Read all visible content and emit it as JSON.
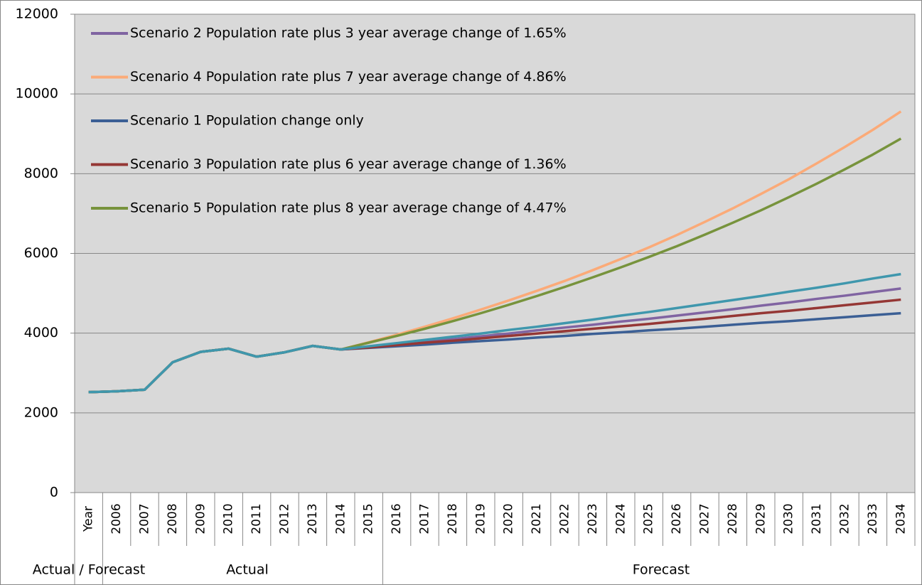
{
  "chart_data": {
    "type": "line",
    "categories": [
      "Year",
      "2006",
      "2007",
      "2008",
      "2009",
      "2010",
      "2011",
      "2012",
      "2013",
      "2014",
      "2015",
      "2016",
      "2017",
      "2018",
      "2019",
      "2020",
      "2021",
      "2022",
      "2023",
      "2024",
      "2025",
      "2026",
      "2027",
      "2028",
      "2029",
      "2030",
      "2031",
      "2032",
      "2033",
      "2034"
    ],
    "groups": [
      "Actual / Forecast",
      "Actual",
      "Forecast"
    ],
    "ylim": [
      0,
      12000
    ],
    "yticks": [
      0,
      2000,
      4000,
      6000,
      8000,
      10000,
      12000
    ],
    "grid": true,
    "legend": "upper left",
    "series": [
      {
        "name": "Scenario 2 Population rate plus 3 year average change of 1.65%",
        "color": "#8064a2",
        "values": [
          2520,
          2540,
          2580,
          3270,
          3530,
          3610,
          3410,
          3520,
          3680,
          3590,
          3650,
          3720,
          3790,
          3850,
          3920,
          3990,
          4070,
          4140,
          4210,
          4290,
          4360,
          4440,
          4520,
          4600,
          4690,
          4770,
          4860,
          4940,
          5030,
          5120
        ]
      },
      {
        "name": "Scenario 4 Population rate plus 7 year average change of 4.86%",
        "color": "#fbaa78",
        "values": [
          2520,
          2540,
          2580,
          3270,
          3530,
          3610,
          3410,
          3520,
          3680,
          3590,
          3770,
          3960,
          4160,
          4370,
          4590,
          4820,
          5060,
          5310,
          5580,
          5860,
          6150,
          6460,
          6790,
          7130,
          7490,
          7860,
          8260,
          8670,
          9100,
          9560
        ]
      },
      {
        "name": "Scenario 1 Population change only",
        "color": "#3b5f95",
        "values": [
          2520,
          2540,
          2580,
          3270,
          3530,
          3610,
          3410,
          3520,
          3680,
          3590,
          3630,
          3670,
          3710,
          3760,
          3800,
          3840,
          3890,
          3930,
          3980,
          4020,
          4070,
          4110,
          4160,
          4210,
          4260,
          4300,
          4350,
          4400,
          4450,
          4500
        ]
      },
      {
        "name": "Scenario 3 Population rate plus 6 year average change of 1.36%",
        "color": "#953735",
        "values": [
          2520,
          2540,
          2580,
          3270,
          3530,
          3610,
          3410,
          3520,
          3680,
          3590,
          3640,
          3700,
          3760,
          3810,
          3870,
          3930,
          3990,
          4050,
          4110,
          4170,
          4230,
          4300,
          4360,
          4430,
          4500,
          4560,
          4630,
          4700,
          4770,
          4840
        ]
      },
      {
        "name": "Scenario 5 Population rate plus 8 year average change of 4.47%",
        "color": "#77933c",
        "values": [
          2520,
          2540,
          2580,
          3270,
          3530,
          3610,
          3410,
          3520,
          3680,
          3590,
          3760,
          3930,
          4110,
          4300,
          4500,
          4710,
          4930,
          5160,
          5400,
          5650,
          5910,
          6180,
          6470,
          6770,
          7080,
          7410,
          7750,
          8110,
          8480,
          8880
        ]
      },
      {
        "color": "#3f97ad",
        "values": [
          2520,
          2540,
          2580,
          3270,
          3530,
          3610,
          3410,
          3520,
          3680,
          3590,
          3670,
          3750,
          3830,
          3910,
          3990,
          4080,
          4160,
          4250,
          4340,
          4440,
          4530,
          4630,
          4730,
          4830,
          4930,
          5040,
          5140,
          5250,
          5370,
          5480
        ]
      }
    ]
  }
}
